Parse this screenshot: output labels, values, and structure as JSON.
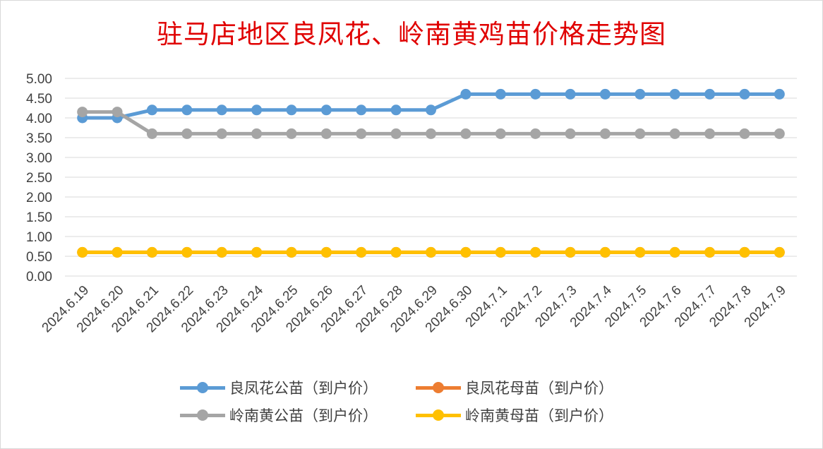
{
  "chart_data": {
    "type": "line",
    "title": "驻马店地区良凤花、岭南黄鸡苗价格走势图",
    "categories": [
      "2024.6.19",
      "2024.6.20",
      "2024.6.21",
      "2024.6.22",
      "2024.6.23",
      "2024.6.24",
      "2024.6.25",
      "2024.6.26",
      "2024.6.27",
      "2024.6.28",
      "2024.6.29",
      "2024.6.30",
      "2024.7.1",
      "2024.7.2",
      "2024.7.3",
      "2024.7.4",
      "2024.7.5",
      "2024.7.6",
      "2024.7.7",
      "2024.7.8",
      "2024.7.9"
    ],
    "yticks": [
      "0.00",
      "0.50",
      "1.00",
      "1.50",
      "2.00",
      "2.50",
      "3.00",
      "3.50",
      "4.00",
      "4.50",
      "5.00"
    ],
    "ylim": [
      0,
      5
    ],
    "grid": true,
    "legend_position": "bottom",
    "series": [
      {
        "name": "良凤花公苗（到户价）",
        "color": "#5b9bd5",
        "values": [
          4.0,
          4.0,
          4.2,
          4.2,
          4.2,
          4.2,
          4.2,
          4.2,
          4.2,
          4.2,
          4.2,
          4.6,
          4.6,
          4.6,
          4.6,
          4.6,
          4.6,
          4.6,
          4.6,
          4.6,
          4.6
        ]
      },
      {
        "name": "良凤花母苗（到户价）",
        "color": "#ed7d31",
        "values": [
          0.6,
          0.6,
          0.6,
          0.6,
          0.6,
          0.6,
          0.6,
          0.6,
          0.6,
          0.6,
          0.6,
          0.6,
          0.6,
          0.6,
          0.6,
          0.6,
          0.6,
          0.6,
          0.6,
          0.6,
          0.6
        ]
      },
      {
        "name": "岭南黄公苗（到户价）",
        "color": "#a5a5a5",
        "values": [
          4.15,
          4.15,
          3.6,
          3.6,
          3.6,
          3.6,
          3.6,
          3.6,
          3.6,
          3.6,
          3.6,
          3.6,
          3.6,
          3.6,
          3.6,
          3.6,
          3.6,
          3.6,
          3.6,
          3.6,
          3.6
        ]
      },
      {
        "name": "岭南黄母苗（到户价）",
        "color": "#ffc000",
        "values": [
          0.6,
          0.6,
          0.6,
          0.6,
          0.6,
          0.6,
          0.6,
          0.6,
          0.6,
          0.6,
          0.6,
          0.6,
          0.6,
          0.6,
          0.6,
          0.6,
          0.6,
          0.6,
          0.6,
          0.6,
          0.6
        ]
      }
    ]
  }
}
